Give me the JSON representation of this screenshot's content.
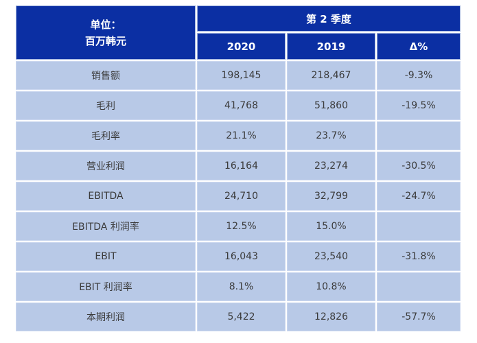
{
  "chart_data": {
    "type": "table",
    "title": "第 2 季度",
    "unit_header": {
      "line1": "单位：",
      "line2": "百万韩元"
    },
    "columns": [
      "2020",
      "2019",
      "Δ%"
    ],
    "rows": [
      {
        "label": "销售额",
        "y2020": "198,145",
        "y2019": "218,467",
        "delta": "-9.3%"
      },
      {
        "label": "毛利",
        "y2020": "41,768",
        "y2019": "51,860",
        "delta": "-19.5%"
      },
      {
        "label": "毛利率",
        "y2020": "21.1%",
        "y2019": "23.7%",
        "delta": ""
      },
      {
        "label": "营业利润",
        "y2020": "16,164",
        "y2019": "23,274",
        "delta": "-30.5%"
      },
      {
        "label": "EBITDA",
        "y2020": "24,710",
        "y2019": "32,799",
        "delta": "-24.7%"
      },
      {
        "label": "EBITDA 利润率",
        "y2020": "12.5%",
        "y2019": "15.0%",
        "delta": ""
      },
      {
        "label": "EBIT",
        "y2020": "16,043",
        "y2019": "23,540",
        "delta": "-31.8%"
      },
      {
        "label": "EBIT 利润率",
        "y2020": "8.1%",
        "y2019": "10.8%",
        "delta": ""
      },
      {
        "label": "本期利润",
        "y2020": "5,422",
        "y2019": "12,826",
        "delta": "-57.7%"
      }
    ],
    "layout": {
      "legend": "none",
      "grid": "white 2px separators",
      "colors": {
        "header_bg": "#0B2FA3",
        "header_text": "#FFFFFF",
        "row_bg": "#B8C9E7",
        "cell_text": "#3B3B3B"
      }
    }
  }
}
